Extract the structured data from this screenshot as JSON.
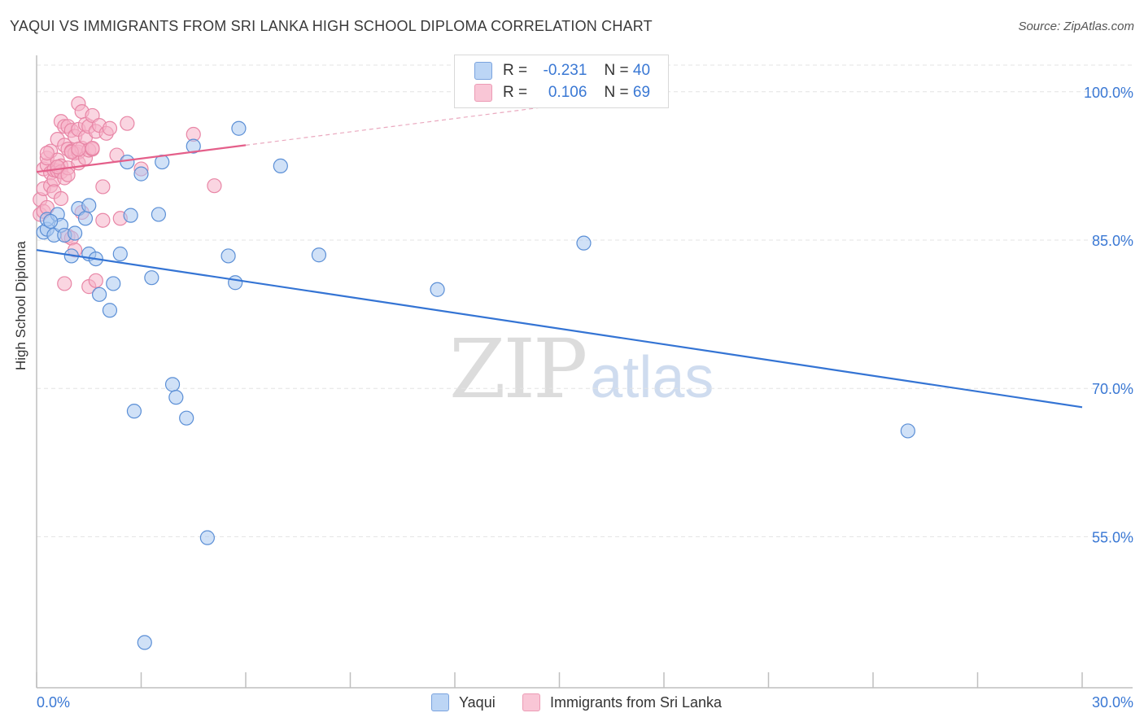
{
  "title": "YAQUI VS IMMIGRANTS FROM SRI LANKA HIGH SCHOOL DIPLOMA CORRELATION CHART",
  "source": "Source: ZipAtlas.com",
  "watermark": {
    "zip": "ZIP",
    "atlas": "atlas"
  },
  "legend": {
    "r_label": "R =",
    "n_label": "N =",
    "rows": [
      {
        "name": "Yaqui",
        "r": "-0.231",
        "n": "40"
      },
      {
        "name": "Immigrants from Sri Lanka",
        "r": "0.106",
        "n": "69"
      }
    ]
  },
  "colors": {
    "yaqui_fill": "#a9c8f0",
    "yaqui_stroke": "#5b8fd6",
    "yaqui_line": "#3474d4",
    "srilanka_fill": "#f6b3c8",
    "srilanka_stroke": "#e886a6",
    "srilanka_line": "#e45f8a",
    "tick_label": "#3a78d4",
    "grid": "#e3e3e3"
  },
  "chart_data": {
    "type": "scatter",
    "title": "YAQUI VS IMMIGRANTS FROM SRI LANKA HIGH SCHOOL DIPLOMA CORRELATION CHART",
    "xlabel": "",
    "ylabel": "High School Diploma",
    "xlim": [
      0,
      30
    ],
    "ylim": [
      40.3,
      102.7
    ],
    "x_tick_labels": [
      "0.0%",
      "30.0%"
    ],
    "y_ticks": [
      55,
      70,
      85,
      100
    ],
    "y_tick_labels": [
      "55.0%",
      "70.0%",
      "85.0%",
      "100.0%"
    ],
    "grid": true,
    "series": [
      {
        "name": "Yaqui",
        "r": -0.231,
        "n": 40,
        "trend": {
          "x": [
            0,
            30
          ],
          "y": [
            84.0,
            68.1
          ]
        },
        "points": [
          [
            0.2,
            85.8
          ],
          [
            0.3,
            86.1
          ],
          [
            0.3,
            87.1
          ],
          [
            0.5,
            85.5
          ],
          [
            0.6,
            87.6
          ],
          [
            0.7,
            86.5
          ],
          [
            0.8,
            85.5
          ],
          [
            1.0,
            83.4
          ],
          [
            1.1,
            85.7
          ],
          [
            1.2,
            88.2
          ],
          [
            1.4,
            87.2
          ],
          [
            1.5,
            88.5
          ],
          [
            1.5,
            83.6
          ],
          [
            1.7,
            83.1
          ],
          [
            1.8,
            79.5
          ],
          [
            2.1,
            77.9
          ],
          [
            2.2,
            80.6
          ],
          [
            2.4,
            83.6
          ],
          [
            2.6,
            92.9
          ],
          [
            2.7,
            87.5
          ],
          [
            2.8,
            67.7
          ],
          [
            3.0,
            91.7
          ],
          [
            3.1,
            44.3
          ],
          [
            3.3,
            81.2
          ],
          [
            3.5,
            87.6
          ],
          [
            3.6,
            92.9
          ],
          [
            3.9,
            70.4
          ],
          [
            4.0,
            69.1
          ],
          [
            4.3,
            67.0
          ],
          [
            4.5,
            94.5
          ],
          [
            4.9,
            54.9
          ],
          [
            5.5,
            83.4
          ],
          [
            5.7,
            80.7
          ],
          [
            5.8,
            96.3
          ],
          [
            7.0,
            92.5
          ],
          [
            8.1,
            83.5
          ],
          [
            11.5,
            80.0
          ],
          [
            15.7,
            84.7
          ],
          [
            25.0,
            65.7
          ],
          [
            0.4,
            86.9
          ]
        ]
      },
      {
        "name": "Immigrants from Sri Lanka",
        "r": 0.106,
        "n": 69,
        "trend": {
          "x": [
            0,
            6
          ],
          "y": [
            91.9,
            94.6
          ]
        },
        "trend_dashed": {
          "x": [
            6,
            18
          ],
          "y": [
            94.6,
            100.0
          ]
        },
        "points": [
          [
            0.1,
            87.6
          ],
          [
            0.1,
            89.1
          ],
          [
            0.2,
            92.2
          ],
          [
            0.2,
            90.2
          ],
          [
            0.2,
            87.9
          ],
          [
            0.3,
            92.6
          ],
          [
            0.3,
            93.3
          ],
          [
            0.3,
            88.3
          ],
          [
            0.4,
            91.8
          ],
          [
            0.4,
            90.5
          ],
          [
            0.4,
            94.0
          ],
          [
            0.5,
            91.1
          ],
          [
            0.5,
            92.1
          ],
          [
            0.5,
            89.9
          ],
          [
            0.6,
            92.0
          ],
          [
            0.6,
            93.1
          ],
          [
            0.6,
            95.2
          ],
          [
            0.7,
            92.5
          ],
          [
            0.7,
            91.9
          ],
          [
            0.7,
            89.2
          ],
          [
            0.7,
            97.0
          ],
          [
            0.8,
            96.5
          ],
          [
            0.8,
            94.6
          ],
          [
            0.8,
            91.3
          ],
          [
            0.9,
            96.5
          ],
          [
            0.9,
            92.3
          ],
          [
            0.9,
            94.2
          ],
          [
            0.8,
            80.6
          ],
          [
            0.9,
            85.4
          ],
          [
            1.0,
            96.1
          ],
          [
            1.0,
            94.0
          ],
          [
            1.0,
            85.2
          ],
          [
            1.1,
            95.5
          ],
          [
            1.1,
            93.8
          ],
          [
            1.1,
            84.0
          ],
          [
            1.2,
            98.8
          ],
          [
            1.2,
            96.2
          ],
          [
            1.2,
            93.9
          ],
          [
            1.2,
            92.8
          ],
          [
            1.3,
            98.0
          ],
          [
            1.3,
            94.3
          ],
          [
            1.3,
            87.8
          ],
          [
            1.4,
            96.7
          ],
          [
            1.4,
            93.3
          ],
          [
            1.4,
            95.4
          ],
          [
            1.5,
            96.5
          ],
          [
            1.5,
            94.1
          ],
          [
            1.5,
            80.3
          ],
          [
            1.6,
            97.6
          ],
          [
            1.6,
            94.2
          ],
          [
            1.6,
            94.3
          ],
          [
            1.7,
            96.0
          ],
          [
            1.7,
            80.9
          ],
          [
            1.8,
            96.6
          ],
          [
            1.9,
            90.4
          ],
          [
            1.9,
            87.0
          ],
          [
            2.0,
            95.8
          ],
          [
            2.1,
            96.3
          ],
          [
            2.3,
            93.6
          ],
          [
            2.4,
            87.2
          ],
          [
            2.6,
            96.8
          ],
          [
            3.0,
            92.2
          ],
          [
            4.5,
            95.7
          ],
          [
            5.1,
            90.5
          ],
          [
            0.3,
            93.8
          ],
          [
            0.6,
            92.4
          ],
          [
            0.9,
            91.6
          ],
          [
            1.0,
            93.9
          ],
          [
            1.2,
            94.2
          ]
        ]
      }
    ]
  }
}
